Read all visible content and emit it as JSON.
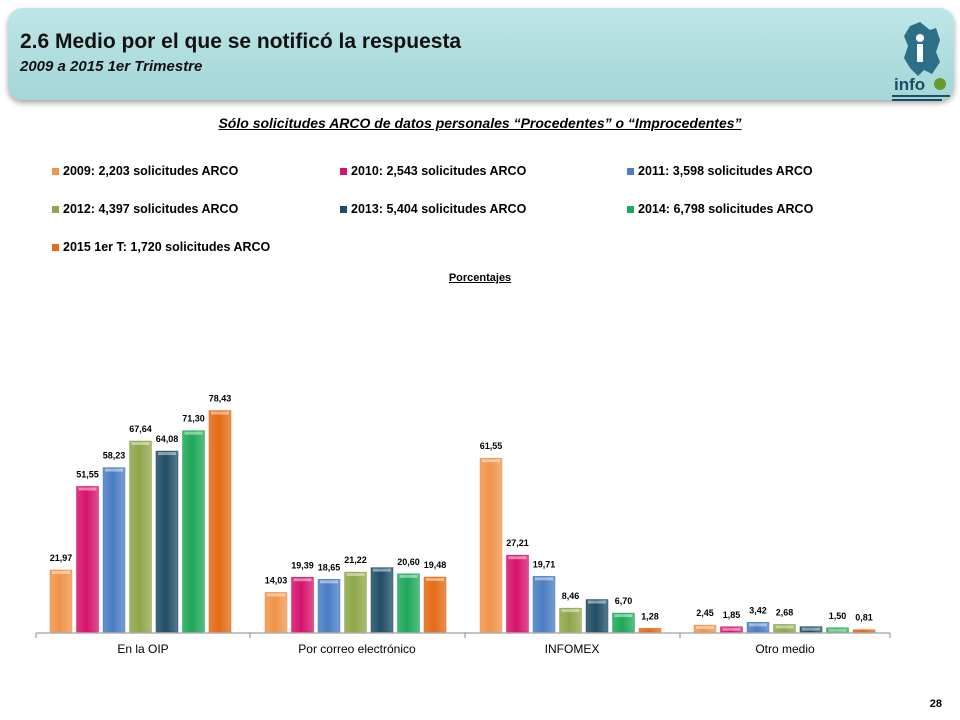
{
  "header": {
    "title": "2.6 Medio por el que se notificó la respuesta",
    "subtitle": "2009 a 2015 1er Trimestre",
    "logo_text": "info"
  },
  "page_number": "28",
  "colors": {
    "header_bg": "#a9d9db",
    "series": [
      "#f0944a",
      "#d6136c",
      "#4a7dc3",
      "#8fa64a",
      "#1f4e66",
      "#1fa85a",
      "#e36b16"
    ]
  },
  "chart_data": {
    "type": "bar",
    "title": "Sólo solicitudes ARCO de datos personales “Procedentes” o “Improcedentes”",
    "subtitle": "Porcentajes",
    "categories": [
      "En la OIP",
      "Por correo electrónico",
      "INFOMEX",
      "Otro medio"
    ],
    "value_labels": [
      [
        "21,97",
        "14,03",
        "61,55",
        "2,45"
      ],
      [
        "51,55",
        "19,39",
        "27,21",
        "1,85"
      ],
      [
        "58,23",
        "18,65",
        "19,71",
        "3,42"
      ],
      [
        "67,64",
        "21,22",
        "8,46",
        "2,68"
      ],
      [
        "64,08",
        "",
        "",
        ""
      ],
      [
        "71,30",
        "20,60",
        "6,70",
        "1,50"
      ],
      [
        "78,43",
        "19,48",
        "1,28",
        "0,81"
      ]
    ],
    "series": [
      {
        "name": "2009: 2,203 solicitudes ARCO",
        "values": [
          21.97,
          14.03,
          61.55,
          2.45
        ]
      },
      {
        "name": "2010: 2,543 solicitudes ARCO",
        "values": [
          51.55,
          19.39,
          27.21,
          1.85
        ]
      },
      {
        "name": "2011: 3,598 solicitudes ARCO",
        "values": [
          58.23,
          18.65,
          19.71,
          3.42
        ]
      },
      {
        "name": "2012: 4,397 solicitudes ARCO",
        "values": [
          67.64,
          21.22,
          8.46,
          2.68
        ]
      },
      {
        "name": "2013: 5,404 solicitudes ARCO",
        "values": [
          64.08,
          22.8,
          11.5,
          1.9
        ]
      },
      {
        "name": "2014: 6,798 solicitudes ARCO",
        "values": [
          71.3,
          20.6,
          6.7,
          1.5
        ]
      },
      {
        "name": "2015 1er T: 1,720 solicitudes ARCO",
        "values": [
          78.43,
          19.48,
          1.28,
          0.81
        ]
      }
    ],
    "ylim": [
      0,
      100
    ],
    "grid": false,
    "legend_position": "top"
  }
}
